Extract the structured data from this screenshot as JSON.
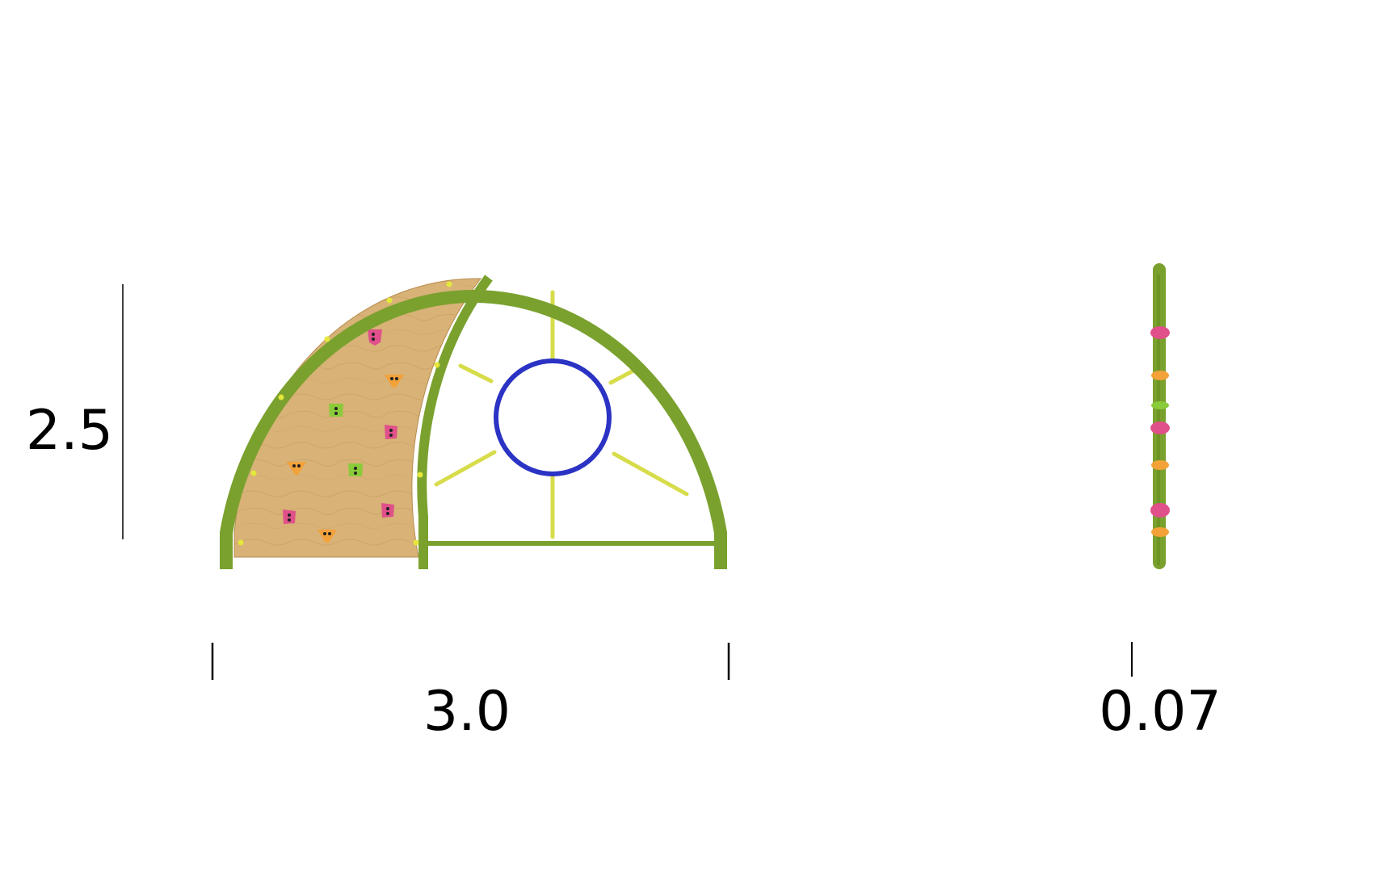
{
  "dimensions": {
    "height": "2.5",
    "width": "3.0",
    "depth": "0.07"
  },
  "views": {
    "front": "climbing-dome-front-view",
    "side": "climbing-dome-side-view"
  },
  "colors": {
    "frame": "#7aa12e",
    "frame_dark": "#5f8a1e",
    "panel": "#d9b276",
    "ring": "#2b33c4",
    "rope": "#d7dc4a",
    "hold_pink": "#e0508a",
    "hold_orange": "#f3a23a",
    "hold_green": "#8acb3a"
  }
}
